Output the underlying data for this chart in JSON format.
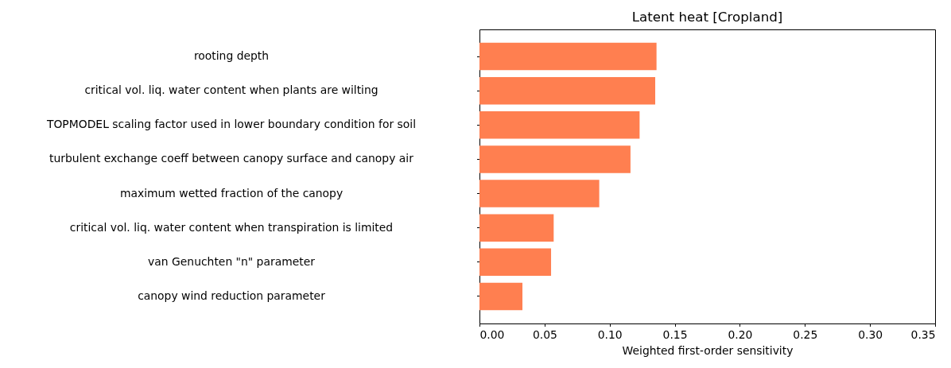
{
  "chart_data": {
    "type": "bar",
    "orientation": "horizontal",
    "title": "Latent heat [Cropland]",
    "xlabel": "Weighted first-order sensitivity",
    "categories": [
      "rooting depth",
      "critical vol. liq. water content when plants are wilting",
      "TOPMODEL scaling factor used in lower boundary condition for soil",
      "turbulent exchange coeff between canopy surface and canopy air",
      "maximum wetted fraction of the canopy",
      "critical vol. liq. water content when transpiration is limited",
      "van Genuchten \"n\" parameter",
      "canopy wind reduction parameter"
    ],
    "values": [
      0.136,
      0.135,
      0.123,
      0.116,
      0.092,
      0.057,
      0.055,
      0.033
    ],
    "color": "#ff7f50",
    "xlim": [
      0,
      0.35
    ],
    "xticks": [
      {
        "value": 0,
        "label": "0.00"
      },
      {
        "value": 0.05,
        "label": "0.05"
      },
      {
        "value": 0.1,
        "label": "0.10"
      },
      {
        "value": 0.15,
        "label": "0.15"
      },
      {
        "value": 0.2,
        "label": "0.20"
      },
      {
        "value": 0.25,
        "label": "0.25"
      },
      {
        "value": 0.3,
        "label": "0.30"
      },
      {
        "value": 0.35,
        "label": "0.35"
      }
    ],
    "grid": false
  }
}
